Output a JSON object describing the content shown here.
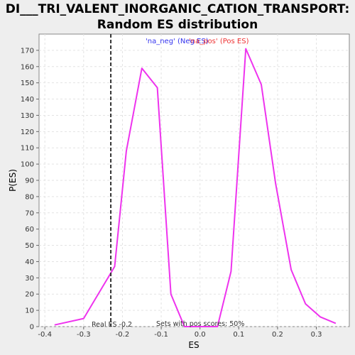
{
  "chart_data": {
    "type": "line",
    "title_line1": "DI___TRI_VALENT_INORGANIC_CATION_TRANSPORT:",
    "title_line2": "Random ES distribution",
    "xlabel": "ES",
    "ylabel": "P(ES)",
    "xlim": [
      -0.415,
      0.385
    ],
    "ylim": [
      0,
      180
    ],
    "x_ticks": [
      -0.4,
      -0.3,
      -0.2,
      -0.1,
      0.0,
      0.1,
      0.2,
      0.3
    ],
    "x_tick_labels": [
      "-0.4",
      "-0.3",
      "-0.2",
      "-0.1",
      "0.0",
      "0.1",
      "0.2",
      "0.3"
    ],
    "y_ticks": [
      0,
      10,
      20,
      30,
      40,
      50,
      60,
      70,
      80,
      90,
      100,
      110,
      120,
      130,
      140,
      150,
      160,
      170
    ],
    "y_tick_labels": [
      "0",
      "10",
      "20",
      "30",
      "40",
      "50",
      "60",
      "70",
      "80",
      "90",
      "100",
      "110",
      "120",
      "130",
      "140",
      "150",
      "160",
      "170"
    ],
    "grid": true,
    "legend": [
      {
        "label": "'na_neg' (Neg ES)",
        "color": "#3333ee"
      },
      {
        "label": "'na_pos' (Pos ES)",
        "color": "#ee3333"
      }
    ],
    "legend_position": "top-center",
    "series": [
      {
        "color": "#ee33ee",
        "x": [
          -0.375,
          -0.3,
          -0.23,
          -0.22,
          -0.19,
          -0.15,
          -0.11,
          -0.075,
          -0.04,
          0.005,
          0.045,
          0.08,
          0.118,
          0.158,
          0.195,
          0.235,
          0.272,
          0.31,
          0.35
        ],
        "y": [
          1,
          5,
          33,
          37,
          108,
          159,
          147,
          20,
          0,
          0,
          0,
          34,
          171,
          149,
          88,
          35,
          14,
          6,
          2
        ]
      }
    ],
    "real_es": {
      "value": -0.23,
      "label": "Real ES -0.2"
    },
    "footnote": "Sets with pos scores: 50%"
  }
}
